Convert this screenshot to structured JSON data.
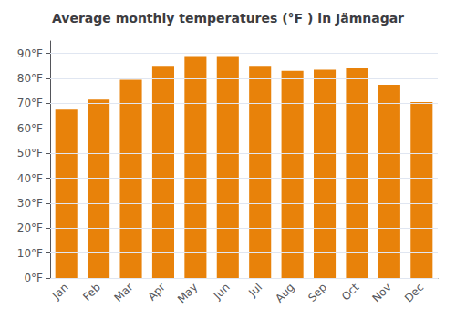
{
  "chart_data": {
    "type": "bar",
    "title": "Average monthly temperatures (°F ) in Jämnagar",
    "categories": [
      "Jan",
      "Feb",
      "Mar",
      "Apr",
      "May",
      "Jun",
      "Jul",
      "Aug",
      "Sep",
      "Oct",
      "Nov",
      "Dec"
    ],
    "values": [
      67.5,
      71.5,
      79.5,
      85.0,
      89.0,
      89.0,
      85.0,
      83.0,
      83.5,
      84.0,
      77.5,
      70.5
    ],
    "color": "#E8820A",
    "ylim": [
      0,
      95
    ],
    "yticks": [
      {
        "value": 0,
        "label": "0°F"
      },
      {
        "value": 10,
        "label": "10°F"
      },
      {
        "value": 20,
        "label": "20°F"
      },
      {
        "value": 30,
        "label": "30°F"
      },
      {
        "value": 40,
        "label": "40°F"
      },
      {
        "value": 50,
        "label": "50°F"
      },
      {
        "value": 60,
        "label": "60°F"
      },
      {
        "value": 70,
        "label": "70°F"
      },
      {
        "value": 80,
        "label": "80°F"
      },
      {
        "value": 90,
        "label": "90°F"
      }
    ],
    "grid": true
  }
}
